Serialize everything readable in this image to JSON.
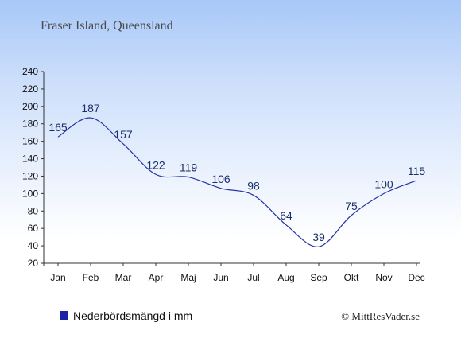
{
  "chart_data": {
    "type": "line",
    "title": "Fraser Island, Queensland",
    "categories": [
      "Jan",
      "Feb",
      "Mar",
      "Apr",
      "Maj",
      "Jun",
      "Jul",
      "Aug",
      "Sep",
      "Okt",
      "Nov",
      "Dec"
    ],
    "series": [
      {
        "name": "Nederbördsmängd i mm",
        "values": [
          165,
          187,
          157,
          122,
          119,
          106,
          98,
          64,
          39,
          75,
          100,
          115
        ]
      }
    ],
    "y_ticks": [
      "20",
      "40",
      "60",
      "80",
      "100",
      "120",
      "140",
      "160",
      "180",
      "200",
      "220",
      "240"
    ],
    "ylim": [
      20,
      240
    ],
    "xlabel": "",
    "ylabel": "",
    "grid": false,
    "legend_position": "bottom-left",
    "line_color": "#2433a8",
    "legend_marker_color": "#1a22a8",
    "label_color": "#1a2f6b"
  },
  "credit": "© MittResVader.se"
}
